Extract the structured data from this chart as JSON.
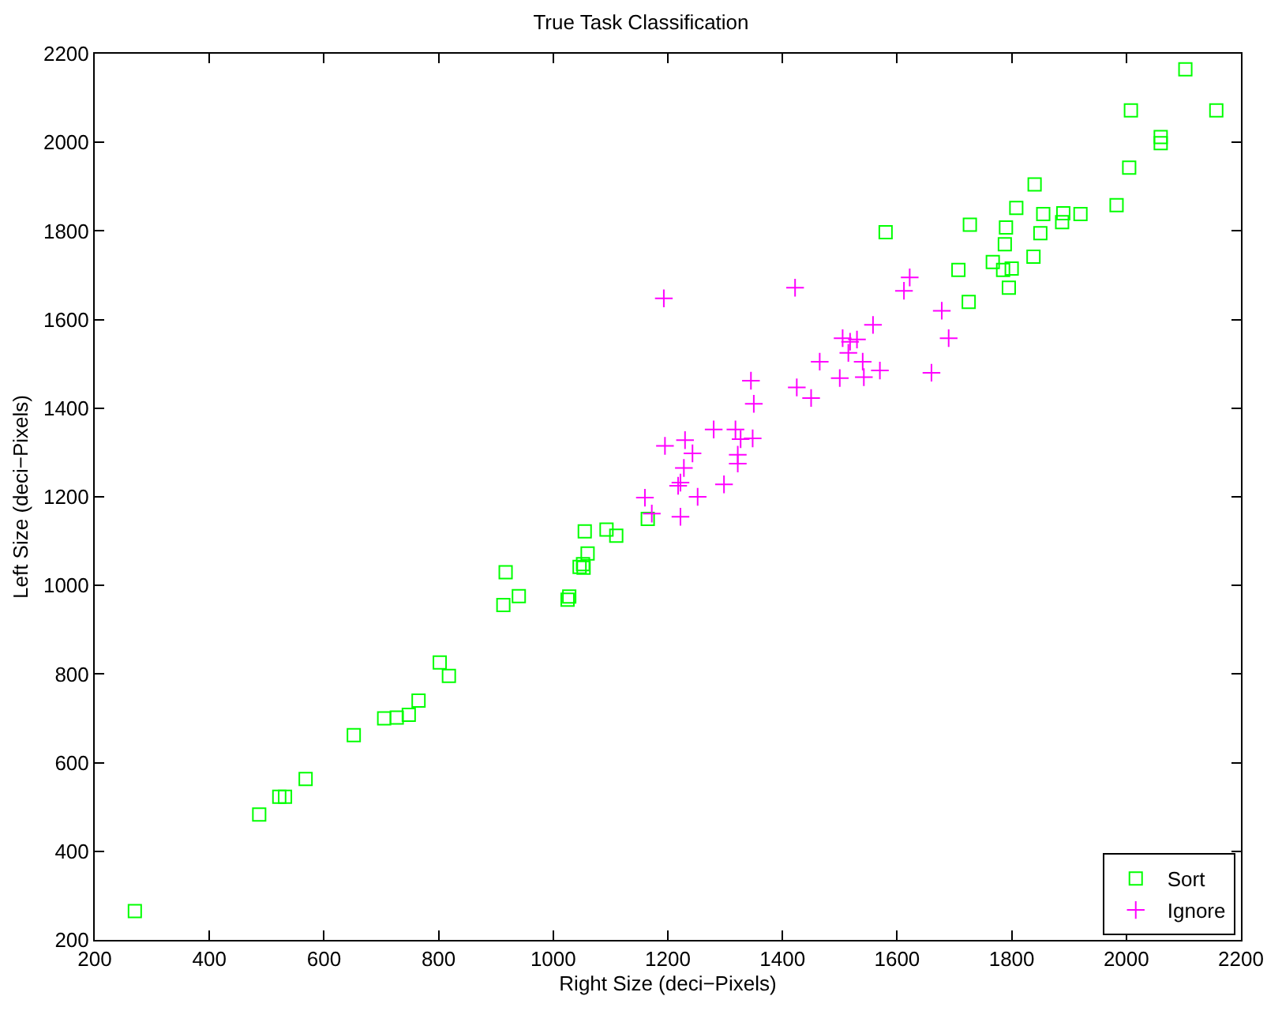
{
  "chart_data": {
    "type": "scatter",
    "title": "True Task Classification",
    "xlabel": "Right Size (deci−Pixels)",
    "ylabel": "Left Size (deci−Pixels)",
    "xlim": [
      200,
      2200
    ],
    "xticks": [
      200,
      400,
      600,
      800,
      1000,
      1200,
      1400,
      1600,
      1800,
      2000,
      2200
    ],
    "ylim": [
      200,
      2200
    ],
    "yticks": [
      200,
      400,
      600,
      800,
      1000,
      1200,
      1400,
      1600,
      1800,
      2000,
      2200
    ],
    "grid": false,
    "legend": "bottom right",
    "series": [
      {
        "name": "Sort",
        "color": "#00ff00",
        "marker": "square",
        "x": [
          270,
          487,
          522,
          532,
          568,
          652,
          705,
          727,
          748,
          765,
          802,
          818,
          913,
          917,
          940,
          1025,
          1028,
          1046,
          1052,
          1053,
          1055,
          1060,
          1093,
          1110,
          1165,
          1580,
          1707,
          1725,
          1727,
          1767,
          1785,
          1788,
          1790,
          1795,
          1800,
          1808,
          1838,
          1840,
          1850,
          1855,
          1888,
          1890,
          1920,
          1983,
          2005,
          2008,
          2060,
          2060,
          2103,
          2157
        ],
        "values": [
          265,
          483,
          523,
          523,
          563,
          662,
          700,
          702,
          708,
          740,
          826,
          796,
          956,
          1030,
          976,
          968,
          975,
          1042,
          1048,
          1040,
          1122,
          1072,
          1126,
          1112,
          1150,
          1797,
          1712,
          1640,
          1814,
          1730,
          1712,
          1770,
          1808,
          1672,
          1715,
          1852,
          1742,
          1905,
          1795,
          1838,
          1820,
          1840,
          1838,
          1858,
          1943,
          2072,
          1998,
          2012,
          2165,
          2072
        ]
      },
      {
        "name": "Ignore",
        "color": "#ff00ff",
        "marker": "cross",
        "x": [
          1160,
          1172,
          1193,
          1195,
          1218,
          1222,
          1222,
          1228,
          1230,
          1243,
          1252,
          1280,
          1298,
          1318,
          1322,
          1322,
          1327,
          1345,
          1348,
          1350,
          1422,
          1425,
          1450,
          1465,
          1500,
          1505,
          1515,
          1518,
          1530,
          1540,
          1542,
          1558,
          1570,
          1612,
          1622,
          1660,
          1678,
          1690
        ],
        "values": [
          1198,
          1162,
          1648,
          1315,
          1225,
          1155,
          1232,
          1265,
          1328,
          1298,
          1200,
          1352,
          1228,
          1352,
          1295,
          1275,
          1330,
          1462,
          1332,
          1410,
          1672,
          1447,
          1423,
          1505,
          1468,
          1558,
          1525,
          1550,
          1555,
          1505,
          1470,
          1588,
          1485,
          1665,
          1695,
          1480,
          1620,
          1558
        ]
      }
    ]
  }
}
